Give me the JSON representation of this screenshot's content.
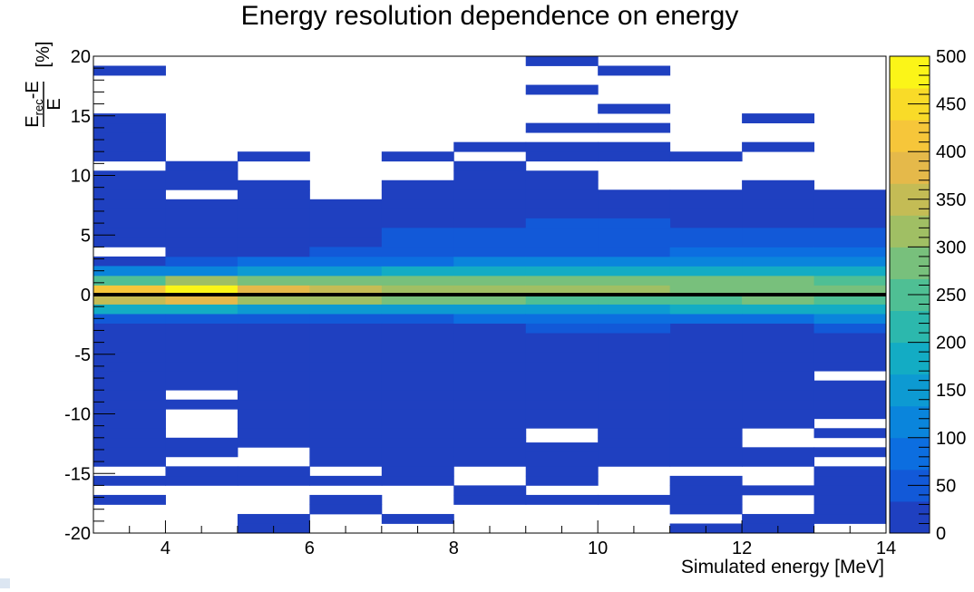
{
  "chart_data": {
    "type": "heatmap",
    "title": "Energy resolution dependence on energy",
    "xlabel": "Simulated energy [MeV]",
    "ylabel": {
      "numerator_main": "E",
      "numerator_sub": "rec",
      "numerator_rest": "-E",
      "denominator": "E",
      "unit": "[%]"
    },
    "xlim": [
      3,
      14
    ],
    "ylim": [
      -20,
      20
    ],
    "x_ticks": [
      4,
      6,
      8,
      10,
      12,
      14
    ],
    "x_tick_labels": [
      "4",
      "6",
      "8",
      "10",
      "12",
      "14"
    ],
    "y_ticks": [
      -20,
      -15,
      -10,
      -5,
      0,
      5,
      10,
      15,
      20
    ],
    "y_tick_labels": [
      "-20",
      "-15",
      "-10",
      "-5",
      "0",
      "5",
      "10",
      "15",
      "20"
    ],
    "colorbar": {
      "min": 0,
      "max": 500,
      "ticks": [
        0,
        50,
        100,
        150,
        200,
        250,
        300,
        350,
        400,
        450,
        500
      ],
      "tick_labels": [
        "0",
        "50",
        "100",
        "150",
        "200",
        "250",
        "300",
        "350",
        "400",
        "450",
        "500"
      ],
      "palette": [
        "#1f40c0",
        "#1259d8",
        "#0c6ee0",
        "#0a85dc",
        "#0d9ad2",
        "#13acc4",
        "#2cb8ad",
        "#4fbf94",
        "#78c07c",
        "#a0bf64",
        "#c4bc55",
        "#e5b94a",
        "#f6c63a",
        "#f9db28",
        "#fbf518"
      ]
    },
    "x_bin_edges": [
      3,
      4,
      5,
      6,
      7,
      8,
      9,
      10,
      11,
      12,
      13,
      14
    ],
    "y_bin_width": 0.8,
    "reference_line_y": 0,
    "cells": [
      {
        "x": 3,
        "y": [
          -17.6,
          -16.0,
          -14.4,
          -13.6,
          -12.8,
          -12.0,
          -11.2,
          -10.4,
          -9.6,
          -8.8,
          -8.0,
          -7.2,
          -6.4,
          -5.6,
          -4.8,
          -4.0,
          -3.2,
          2.4,
          4.0,
          4.8,
          5.6,
          6.4,
          7.2,
          8.0,
          8.8,
          9.6,
          11.2,
          12.0,
          12.8,
          13.6,
          14.4,
          18.4
        ],
        "v": 25
      },
      {
        "x": 4,
        "y": [
          -16.0,
          -15.2,
          -13.6,
          -12.8,
          -9.6,
          -8.0,
          -7.2,
          -6.4,
          -5.6,
          -4.8,
          -4.0,
          -3.2,
          4.0,
          4.8,
          5.6,
          6.4,
          7.2,
          8.8,
          9.6,
          10.4
        ],
        "v": 25
      },
      {
        "x": 5,
        "y": [
          -20.0,
          -19.2,
          -16.0,
          -15.2,
          -12.8,
          -12.0,
          -11.2,
          -10.4,
          -9.6,
          -8.8,
          -8.0,
          -7.2,
          -6.4,
          -5.6,
          -4.8,
          -4.0,
          -3.2,
          4.0,
          4.8,
          5.6,
          6.4,
          7.2,
          8.0,
          8.8,
          11.2
        ],
        "v": 25
      },
      {
        "x": 6,
        "y": [
          -18.4,
          -17.6,
          -16.0,
          -14.4,
          -13.6,
          -12.8,
          -12.0,
          -11.2,
          -10.4,
          -9.6,
          -8.8,
          -8.0,
          -7.2,
          -6.4,
          -5.6,
          -4.8,
          -4.0,
          -3.2,
          4.0,
          4.8,
          5.6,
          6.4,
          7.2
        ],
        "v": 25
      },
      {
        "x": 7,
        "y": [
          -19.2,
          -16.0,
          -15.2,
          -14.4,
          -13.6,
          -12.8,
          -12.0,
          -11.2,
          -10.4,
          -9.6,
          -8.8,
          -8.0,
          -7.2,
          -6.4,
          -5.6,
          -4.8,
          -4.0,
          -3.2,
          5.6,
          6.4,
          7.2,
          8.0,
          8.8,
          11.2
        ],
        "v": 25
      },
      {
        "x": 8,
        "y": [
          -17.6,
          -16.8,
          -14.4,
          -13.6,
          -12.8,
          -12.0,
          -11.2,
          -10.4,
          -9.6,
          -8.8,
          -8.0,
          -7.2,
          -6.4,
          -5.6,
          -4.8,
          -4.0,
          -3.2,
          5.6,
          6.4,
          7.2,
          8.0,
          8.8,
          9.6,
          10.4,
          12.0
        ],
        "v": 25
      },
      {
        "x": 9,
        "y": [
          -17.6,
          -16.0,
          -15.2,
          -14.4,
          -13.6,
          -13.2,
          -11.2,
          -10.4,
          -9.6,
          -8.8,
          -8.0,
          -7.2,
          -6.4,
          -5.6,
          -4.8,
          -4.0,
          -3.2,
          6.4,
          7.2,
          8.0,
          8.8,
          9.6,
          11.2,
          12.0,
          13.6,
          16.8,
          19.2
        ],
        "v": 25
      },
      {
        "x": 10,
        "y": [
          -17.6,
          -14.4,
          -13.6,
          -12.8,
          -12.0,
          -11.2,
          -10.4,
          -9.6,
          -8.8,
          -8.0,
          -7.2,
          -6.4,
          -5.6,
          -4.8,
          -4.0,
          -3.2,
          6.4,
          7.2,
          8.0,
          11.2,
          12.0,
          13.6,
          15.2,
          18.4
        ],
        "v": 25
      },
      {
        "x": 11,
        "y": [
          -20.0,
          -18.4,
          -17.6,
          -16.8,
          -16.0,
          -14.4,
          -13.6,
          -12.8,
          -12.0,
          -11.2,
          -10.4,
          -9.6,
          -8.8,
          -8.0,
          -7.2,
          -6.4,
          -5.6,
          -4.8,
          -4.0,
          -3.2,
          5.6,
          6.4,
          7.2,
          8.0,
          11.2
        ],
        "v": 25
      },
      {
        "x": 12,
        "y": [
          -20.0,
          -19.2,
          -16.8,
          -14.4,
          -13.6,
          -11.2,
          -10.4,
          -9.6,
          -8.8,
          -8.0,
          -7.2,
          -6.4,
          -5.6,
          -4.8,
          -4.0,
          -3.2,
          5.6,
          6.4,
          7.2,
          8.0,
          8.8,
          12.0,
          14.4
        ],
        "v": 25
      },
      {
        "x": 13,
        "y": [
          -19.2,
          -18.4,
          -17.6,
          -16.8,
          -16.0,
          -15.2,
          -13.6,
          -12.0,
          -10.4,
          -9.6,
          -8.8,
          -8.0,
          -6.4,
          -5.6,
          -4.8,
          -4.0,
          5.6,
          6.4,
          7.2,
          8.0
        ],
        "v": 25
      }
    ],
    "core": [
      {
        "x": 3,
        "y": [
          -2.4,
          -1.6,
          -0.8,
          0.0,
          0.8,
          1.6
        ],
        "v": [
          65,
          175,
          360,
          420,
          255,
          120
        ]
      },
      {
        "x": 4,
        "y": [
          -2.4,
          -1.6,
          -0.8,
          0.0,
          0.8,
          1.6,
          2.4,
          3.2
        ],
        "v": [
          50,
          170,
          380,
          470,
          300,
          130,
          60,
          25
        ]
      },
      {
        "x": 5,
        "y": [
          -2.4,
          -1.6,
          -0.8,
          0.0,
          0.8,
          1.6,
          2.4,
          3.2
        ],
        "v": [
          55,
          160,
          330,
          390,
          280,
          150,
          75,
          30
        ]
      },
      {
        "x": 6,
        "y": [
          -2.4,
          -1.6,
          -0.8,
          0.0,
          0.8,
          1.6,
          2.4,
          3.2
        ],
        "v": [
          60,
          150,
          300,
          340,
          285,
          160,
          80,
          35
        ]
      },
      {
        "x": 7,
        "y": [
          -2.4,
          -1.6,
          -0.8,
          0.0,
          0.8,
          1.6,
          2.4,
          3.2,
          4.0,
          4.8
        ],
        "v": [
          65,
          150,
          280,
          330,
          280,
          170,
          95,
          45,
          55,
          55
        ]
      },
      {
        "x": 8,
        "y": [
          -2.4,
          -1.6,
          -0.8,
          0.0,
          0.8,
          1.6,
          2.4,
          3.2,
          4.0,
          4.8
        ],
        "v": [
          70,
          155,
          270,
          315,
          275,
          175,
          100,
          50,
          40,
          40
        ]
      },
      {
        "x": 9,
        "y": [
          -3.2,
          -2.4,
          -1.6,
          -0.8,
          0.0,
          0.8,
          1.6,
          2.4,
          3.2,
          4.0,
          4.8,
          5.6
        ],
        "v": [
          35,
          80,
          160,
          265,
          305,
          275,
          180,
          110,
          55,
          40,
          40,
          40
        ]
      },
      {
        "x": 10,
        "y": [
          -3.2,
          -2.4,
          -1.6,
          -0.8,
          0.0,
          0.8,
          1.6,
          2.4,
          3.2,
          4.0,
          4.8,
          5.6
        ],
        "v": [
          40,
          85,
          165,
          265,
          300,
          275,
          185,
          115,
          60,
          40,
          40,
          40
        ]
      },
      {
        "x": 11,
        "y": [
          -2.4,
          -1.6,
          -0.8,
          0.0,
          0.8,
          1.6,
          2.4,
          3.2,
          4.0,
          4.8
        ],
        "v": [
          90,
          170,
          265,
          290,
          270,
          190,
          125,
          70,
          40,
          40
        ]
      },
      {
        "x": 12,
        "y": [
          -2.4,
          -1.6,
          -0.8,
          0.0,
          0.8,
          1.6,
          2.4,
          3.2,
          4.0,
          4.8
        ],
        "v": [
          95,
          175,
          270,
          290,
          270,
          190,
          130,
          80,
          45,
          40
        ]
      },
      {
        "x": 13,
        "y": [
          -3.2,
          -2.4,
          -1.6,
          -0.8,
          0.0,
          0.8,
          1.6,
          2.4,
          3.2,
          4.0,
          4.8
        ],
        "v": [
          40,
          100,
          180,
          260,
          280,
          260,
          190,
          130,
          90,
          55,
          40
        ]
      }
    ]
  }
}
